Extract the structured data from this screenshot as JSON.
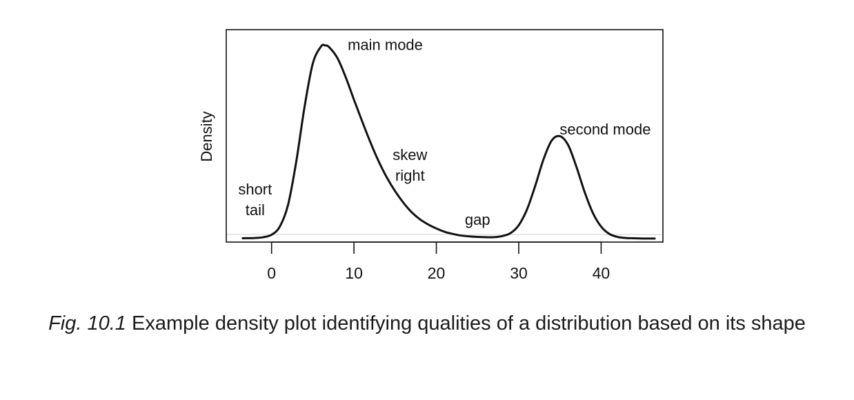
{
  "chart_data": {
    "type": "line",
    "title": "",
    "xlabel": "",
    "ylabel": "Density",
    "xlim": [
      -5.5,
      47.5
    ],
    "ylim": [
      -0.0012,
      0.077
    ],
    "x_ticks": [
      0,
      10,
      20,
      30,
      40
    ],
    "y_ticks": [],
    "grid": false,
    "legend": "none",
    "series": [
      {
        "x": [
          -3.5,
          -2,
          -1,
          0,
          1,
          2,
          3,
          4,
          5,
          6,
          6.5,
          7,
          8,
          9,
          10,
          11,
          12,
          13,
          14,
          15,
          16,
          17,
          18,
          19,
          20,
          21,
          22,
          23,
          24,
          25,
          26,
          27,
          28,
          29,
          30,
          31,
          32,
          33,
          34,
          35,
          36,
          37,
          38,
          39,
          40,
          41,
          42,
          43,
          44,
          45,
          46.5
        ],
        "y": [
          0.0002,
          0.0003,
          0.0006,
          0.0015,
          0.0045,
          0.0125,
          0.0285,
          0.0485,
          0.0645,
          0.0708,
          0.0712,
          0.0705,
          0.0665,
          0.0595,
          0.0512,
          0.0432,
          0.0355,
          0.0285,
          0.0225,
          0.0175,
          0.0133,
          0.0098,
          0.0072,
          0.0053,
          0.0038,
          0.0026,
          0.0018,
          0.0012,
          0.0009,
          0.0007,
          0.0006,
          0.0006,
          0.001,
          0.0021,
          0.005,
          0.0108,
          0.0195,
          0.0292,
          0.0362,
          0.0378,
          0.0345,
          0.0265,
          0.0172,
          0.0095,
          0.0045,
          0.0018,
          0.0007,
          0.0003,
          0.0002,
          0.0001,
          0.0001
        ]
      }
    ],
    "annotations": [
      {
        "id": "main_mode",
        "lines": [
          "main mode"
        ],
        "x": 13.8,
        "y": 0.0715
      },
      {
        "id": "second_mode",
        "lines": [
          "second mode"
        ],
        "x": 40.5,
        "y": 0.0405
      },
      {
        "id": "skew_right",
        "lines": [
          "skew",
          "right"
        ],
        "x": 16.8,
        "y": 0.0272
      },
      {
        "id": "short_tail",
        "lines": [
          "short",
          "tail"
        ],
        "x": -2.0,
        "y": 0.0145
      },
      {
        "id": "gap",
        "lines": [
          "gap"
        ],
        "x": 25.0,
        "y": 0.0072
      }
    ]
  },
  "caption": {
    "figure_label": "Fig. 10.1",
    "text": " Example density plot identifying qualities of a distribution based on its shape"
  }
}
